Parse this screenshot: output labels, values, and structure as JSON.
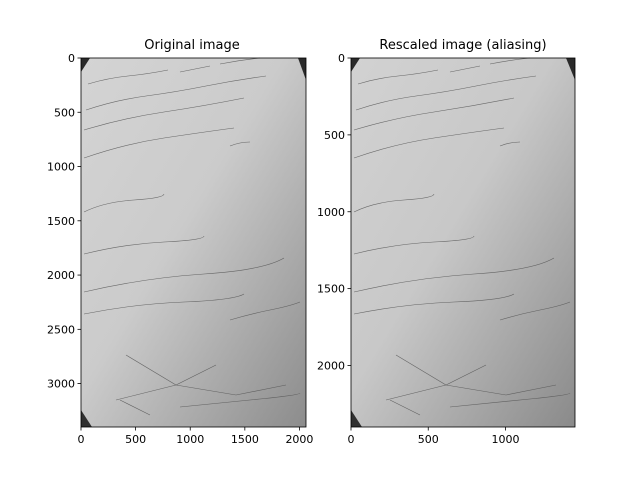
{
  "chart_data": [
    {
      "type": "image",
      "title": "Original image",
      "image_description": "grayscale photo of a handwritten notes page",
      "xlim": [
        0,
        2060
      ],
      "ylim": [
        3400,
        0
      ],
      "xticks": [
        0,
        500,
        1000,
        1500,
        2000
      ],
      "yticks": [
        0,
        500,
        1000,
        1500,
        2000,
        2500,
        3000
      ],
      "xtick_labels": [
        "0",
        "500",
        "1000",
        "1500",
        "2000"
      ],
      "ytick_labels": [
        "0",
        "500",
        "1000",
        "1500",
        "2000",
        "2500",
        "3000"
      ],
      "grid": false
    },
    {
      "type": "image",
      "title": "Rescaled image (aliasing)",
      "image_description": "same handwritten notes page, downscaled",
      "xlim": [
        0,
        1450
      ],
      "ylim": [
        2400,
        0
      ],
      "xticks": [
        0,
        500,
        1000
      ],
      "yticks": [
        0,
        500,
        1000,
        1500,
        2000
      ],
      "xtick_labels": [
        "0",
        "500",
        "1000"
      ],
      "ytick_labels": [
        "0",
        "500",
        "1000",
        "1500",
        "2000"
      ],
      "grid": false
    }
  ]
}
